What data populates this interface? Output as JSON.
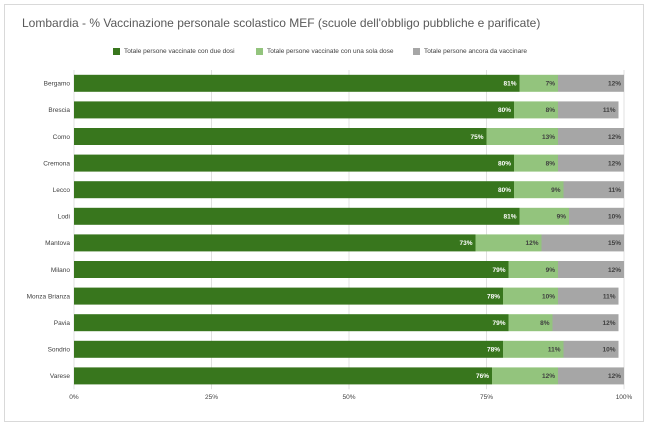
{
  "chart_data": {
    "type": "bar",
    "orientation": "horizontal",
    "stacked": true,
    "title": "Lombardia - % Vaccinazione personale scolastico MEF (scuole  dell'obbligo pubbliche e parificate)",
    "categories": [
      "Bergamo",
      "Brescia",
      "Como",
      "Cremona",
      "Lecco",
      "Lodi",
      "Mantova",
      "Milano",
      "Monza Brianza",
      "Pavia",
      "Sondrio",
      "Varese"
    ],
    "series": [
      {
        "name": "Totale persone vaccinate con due dosi",
        "color": "#38761d",
        "values": [
          81,
          80,
          75,
          80,
          80,
          81,
          73,
          79,
          78,
          79,
          78,
          76
        ]
      },
      {
        "name": "Totale persone vaccinate con una sola dose",
        "color": "#93c47d",
        "values": [
          7,
          8,
          13,
          8,
          9,
          9,
          12,
          9,
          10,
          8,
          11,
          12
        ]
      },
      {
        "name": "Totale persone ancora da vaccinare",
        "color": "#a6a6a6",
        "values": [
          12,
          11,
          12,
          12,
          11,
          10,
          15,
          12,
          11,
          12,
          10,
          12
        ]
      }
    ],
    "xlim": [
      0,
      100
    ],
    "xticks": [
      "0%",
      "25%",
      "50%",
      "75%",
      "100%"
    ],
    "legend_position": "top",
    "grid": "vertical"
  }
}
